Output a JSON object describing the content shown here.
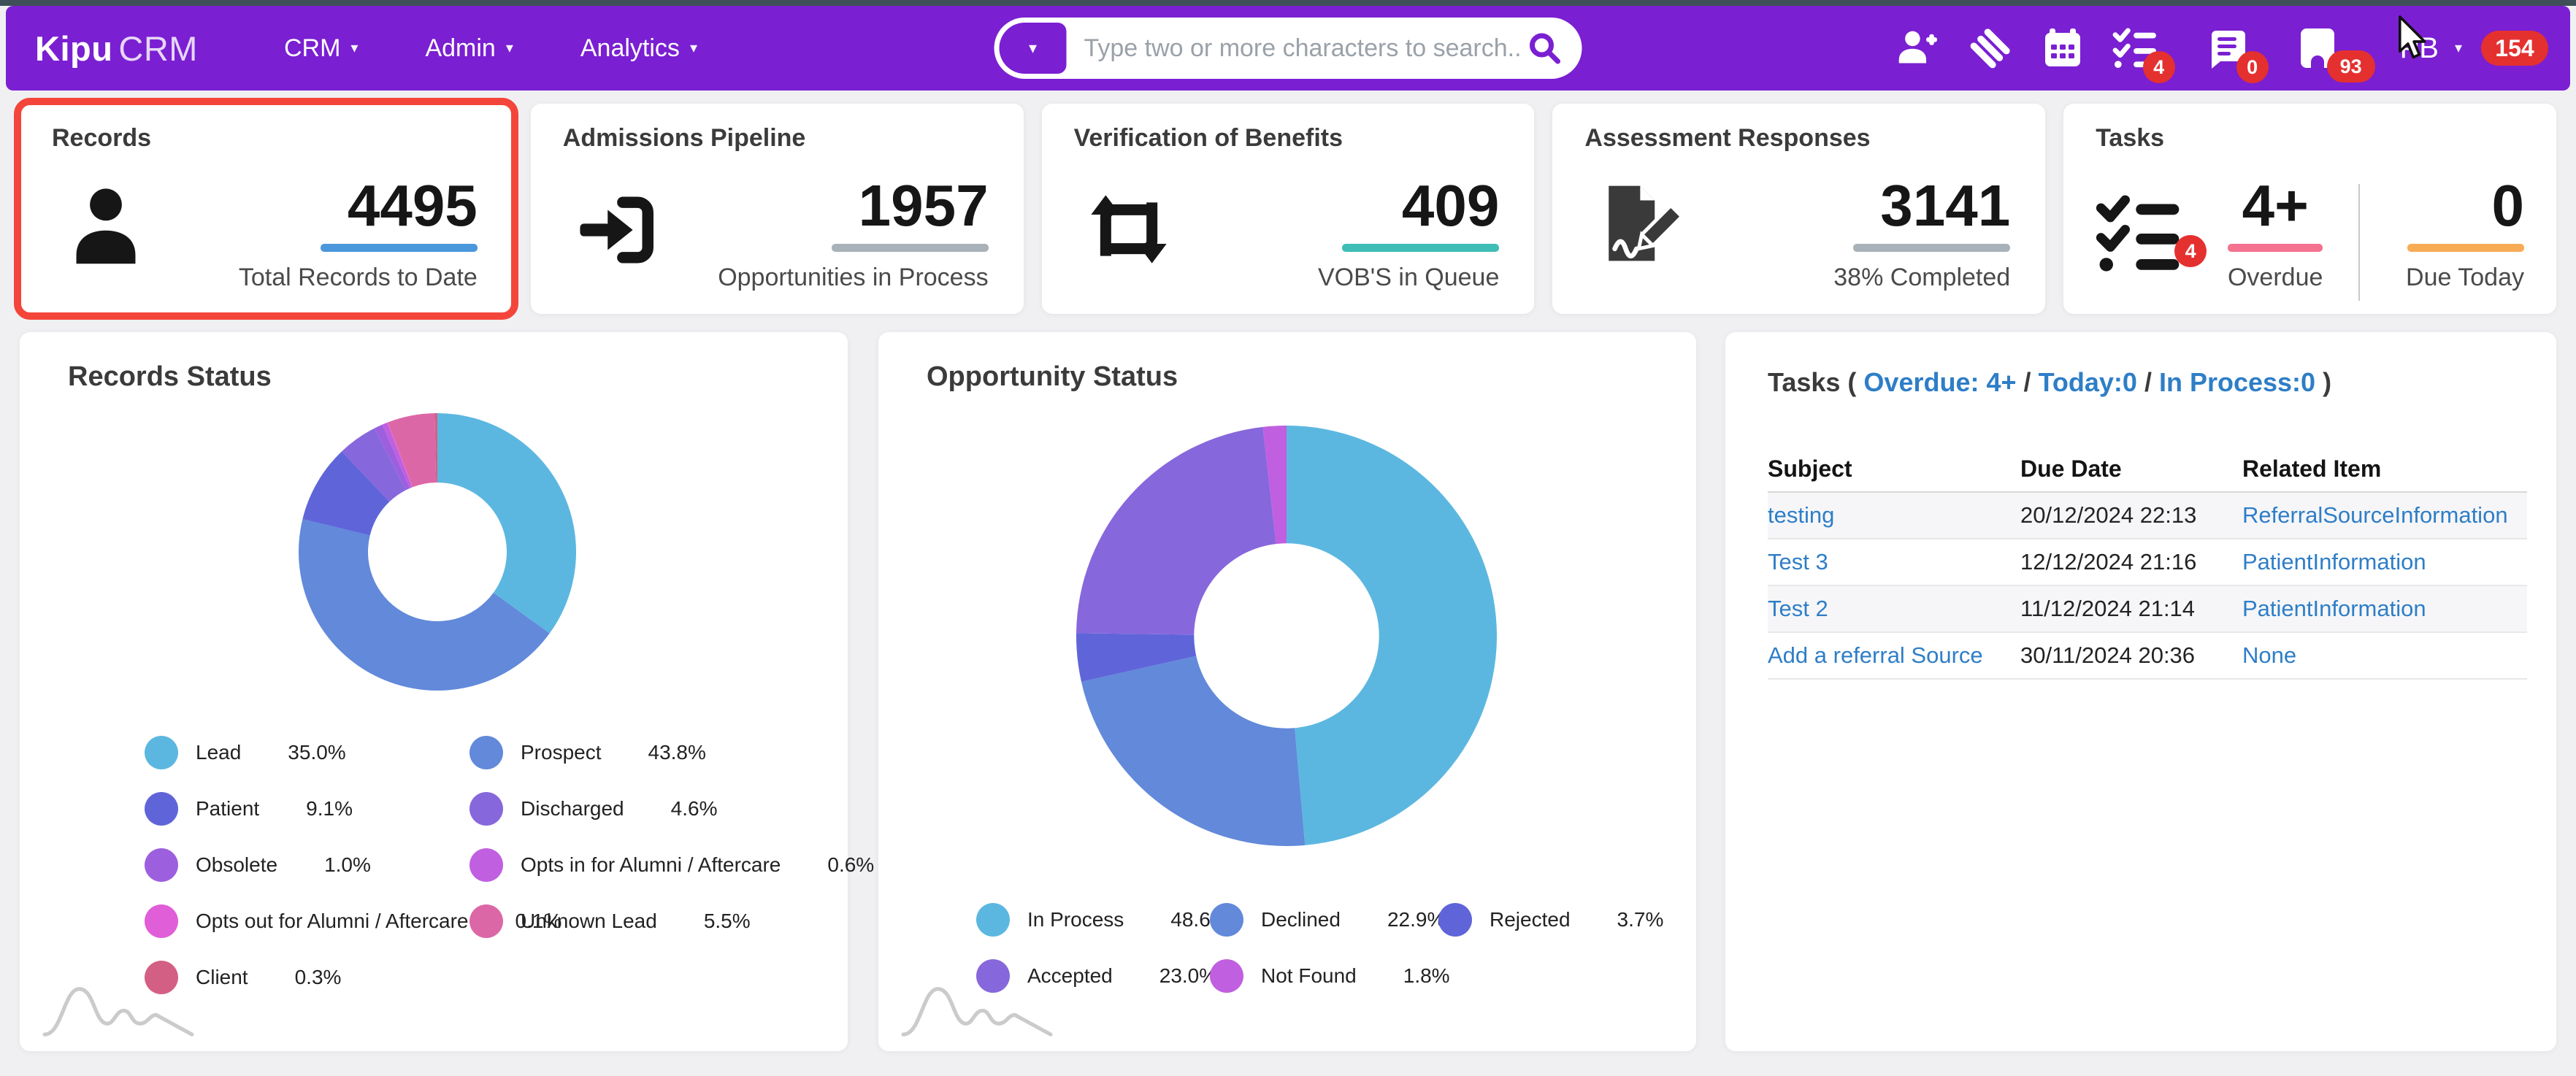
{
  "nav": {
    "logo_primary": "Kipu",
    "logo_secondary": "CRM",
    "menus": [
      {
        "label": "CRM"
      },
      {
        "label": "Admin"
      },
      {
        "label": "Analytics"
      }
    ],
    "search_placeholder": "Type two or more characters to search...",
    "user_initials": "PB",
    "badges": {
      "tasks": "4",
      "messages": "0",
      "inbox": "93",
      "notifications": "154"
    },
    "icons": [
      "add-user-icon",
      "kipu-mark-icon",
      "calendar-icon",
      "checklist-icon",
      "chat-icon",
      "tablet-icon",
      "search-icon",
      "caret-down-icon"
    ]
  },
  "stat_cards": [
    {
      "title": "Records",
      "value": "4495",
      "caption": "Total Records to Date",
      "accent": "#4a97dc",
      "icon": "person-icon",
      "highlighted": true
    },
    {
      "title": "Admissions Pipeline",
      "value": "1957",
      "caption": "Opportunities in Process",
      "accent": "#a8b2b8",
      "icon": "sign-in-icon"
    },
    {
      "title": "Verification of Benefits",
      "value": "409",
      "caption": "VOB'S in Queue",
      "accent": "#3fbdb7",
      "icon": "repeat-icon"
    },
    {
      "title": "Assessment Responses",
      "value": "3141",
      "caption": "38% Completed",
      "accent": "#a8b2b8",
      "icon": "file-signature-icon"
    },
    {
      "title": "Tasks",
      "badge": "4",
      "icon": "checklist-icon",
      "overdue": {
        "value": "4+",
        "label": "Overdue",
        "accent": "#f4718f"
      },
      "due_today": {
        "value": "0",
        "label": "Due Today",
        "accent": "#f8ab55"
      }
    }
  ],
  "tasks_panel": {
    "title_prefix": "Tasks (",
    "links": [
      {
        "label": "Overdue: 4+"
      },
      {
        "label": "Today:0"
      },
      {
        "label": "In Process:0"
      }
    ],
    "separator": "/",
    "title_suffix": ")",
    "columns": [
      "Subject",
      "Due Date",
      "Related Item"
    ],
    "rows": [
      {
        "subject": "testing",
        "due": "20/12/2024 22:13",
        "related": "ReferralSourceInformation"
      },
      {
        "subject": "Test 3",
        "due": "12/12/2024 21:16",
        "related": "PatientInformation"
      },
      {
        "subject": "Test 2",
        "due": "11/12/2024 21:14",
        "related": "PatientInformation"
      },
      {
        "subject": "Add a referral Source",
        "due": "30/11/2024 20:36",
        "related": "None"
      }
    ]
  },
  "chart_data": [
    {
      "type": "pie",
      "title": "Records Status",
      "donut_hole": 0.5,
      "legend_position": "bottom",
      "slices": [
        {
          "label": "Lead",
          "value": 35.0,
          "color": "#5cb7e0"
        },
        {
          "label": "Prospect",
          "value": 43.8,
          "color": "#6289da"
        },
        {
          "label": "Patient",
          "value": 9.1,
          "color": "#5f65d8"
        },
        {
          "label": "Discharged",
          "value": 4.6,
          "color": "#8767dc"
        },
        {
          "label": "Obsolete",
          "value": 1.0,
          "color": "#9c5fdd"
        },
        {
          "label": "Opts in for Alumni / Aftercare",
          "value": 0.6,
          "color": "#c05fe0"
        },
        {
          "label": "Opts out for Alumni / Aftercare",
          "value": 0.1,
          "color": "#e05ed8"
        },
        {
          "label": "Unknown Lead",
          "value": 5.5,
          "color": "#dc67a6"
        },
        {
          "label": "Client",
          "value": 0.3,
          "color": "#d45f85"
        }
      ],
      "legend_columns": [
        [
          0,
          2,
          4,
          6,
          8
        ],
        [
          1,
          3,
          5,
          7
        ]
      ]
    },
    {
      "type": "pie",
      "title": "Opportunity Status",
      "donut_hole": 0.44,
      "legend_position": "bottom",
      "slices": [
        {
          "label": "In Process",
          "value": 48.6,
          "color": "#5cb7e0"
        },
        {
          "label": "Declined",
          "value": 22.9,
          "color": "#6289da"
        },
        {
          "label": "Rejected",
          "value": 3.7,
          "color": "#5f65d8"
        },
        {
          "label": "Accepted",
          "value": 23.0,
          "color": "#8767dc"
        },
        {
          "label": "Not Found",
          "value": 1.8,
          "color": "#c05fe0"
        }
      ],
      "legend_rows": [
        [
          0,
          1,
          2
        ],
        [
          3,
          4
        ]
      ]
    }
  ],
  "theme": {
    "nav_purple": "#7a1fd2",
    "badge_red": "#e53030",
    "highlight_red": "#f4453a",
    "link_blue": "#2e7ec7",
    "page_bg": "#f0f0f2"
  }
}
